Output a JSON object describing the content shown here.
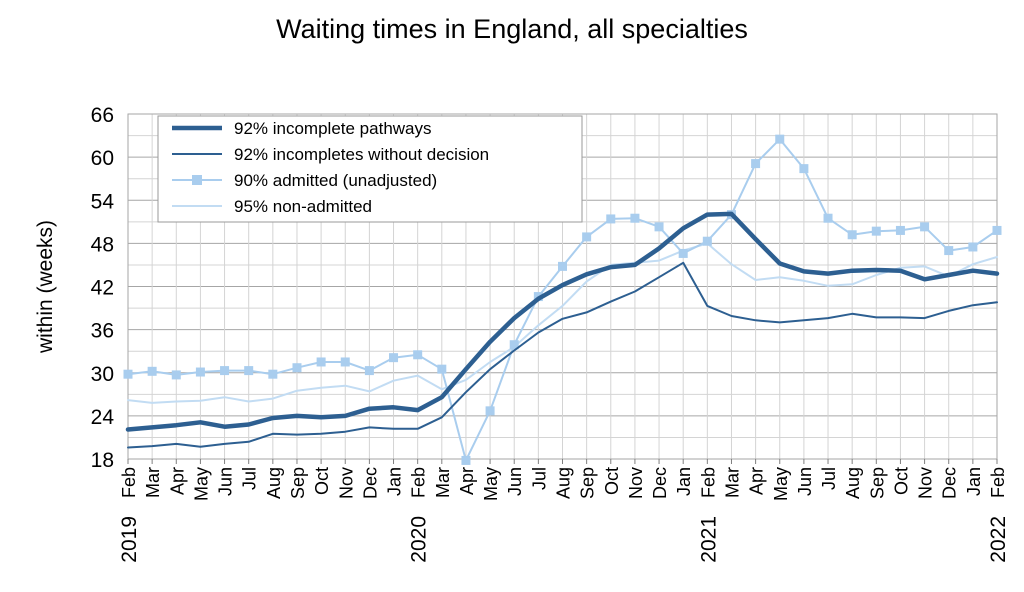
{
  "chart_data": {
    "type": "line",
    "title": "Waiting times in England, all specialties",
    "ylabel": "within  (weeks)",
    "xlabel": "",
    "ylim": [
      18,
      66
    ],
    "yticks": [
      18,
      24,
      30,
      36,
      42,
      48,
      54,
      60,
      66
    ],
    "grid": true,
    "legend_position": "top-left",
    "x": [
      "Feb",
      "Mar",
      "Apr",
      "May",
      "Jun",
      "Jul",
      "Aug",
      "Sep",
      "Oct",
      "Nov",
      "Dec",
      "Jan",
      "Feb",
      "Mar",
      "Apr",
      "May",
      "Jun",
      "Jul",
      "Aug",
      "Sep",
      "Oct",
      "Nov",
      "Dec",
      "Jan",
      "Feb",
      "Mar",
      "Apr",
      "May",
      "Jun",
      "Jul",
      "Aug",
      "Sep",
      "Oct",
      "Nov",
      "Dec",
      "Jan",
      "Feb"
    ],
    "year_labels": [
      {
        "index": 0,
        "label": "2019"
      },
      {
        "index": 12,
        "label": "2020"
      },
      {
        "index": 24,
        "label": "2021"
      },
      {
        "index": 36,
        "label": "2022"
      }
    ],
    "series": [
      {
        "name": "92% incomplete pathways",
        "color": "#2d5f91",
        "style": "thick",
        "values": [
          22.1,
          22.4,
          22.7,
          23.1,
          22.5,
          22.8,
          23.7,
          24.0,
          23.8,
          24.0,
          25.0,
          25.2,
          24.8,
          26.6,
          30.5,
          34.3,
          37.6,
          40.3,
          42.2,
          43.7,
          44.7,
          45.0,
          47.3,
          50.1,
          52.0,
          52.1,
          48.6,
          45.2,
          44.1,
          43.8,
          44.2,
          44.3,
          44.2,
          43.0,
          43.6,
          44.2,
          43.8
        ]
      },
      {
        "name": "92% incompletes without decision",
        "color": "#2d5f91",
        "style": "thin",
        "values": [
          19.6,
          19.8,
          20.1,
          19.7,
          20.1,
          20.4,
          21.5,
          21.4,
          21.5,
          21.8,
          22.4,
          22.2,
          22.2,
          23.8,
          27.3,
          30.5,
          33.1,
          35.6,
          37.5,
          38.4,
          39.9,
          41.3,
          43.3,
          45.3,
          39.3,
          37.9,
          37.3,
          37.0,
          37.3,
          37.6,
          38.2,
          37.7,
          37.7,
          37.6,
          38.6,
          39.4,
          39.8
        ]
      },
      {
        "name": "90% admitted (unadjusted)",
        "color": "#a9cdee",
        "style": "markers",
        "values": [
          29.8,
          30.2,
          29.7,
          30.1,
          30.3,
          30.3,
          29.8,
          30.7,
          31.5,
          31.5,
          30.3,
          32.1,
          32.5,
          30.5,
          17.8,
          24.7,
          33.9,
          40.6,
          44.8,
          48.9,
          51.4,
          51.5,
          50.3,
          46.6,
          48.3,
          52.0,
          59.1,
          62.5,
          58.4,
          51.5,
          49.2,
          49.7,
          49.8,
          50.3,
          47.0,
          47.5,
          49.8
        ]
      },
      {
        "name": "95% non-admitted",
        "color": "#c2dcf3",
        "style": "thin",
        "values": [
          26.2,
          25.8,
          26.0,
          26.1,
          26.6,
          26.0,
          26.4,
          27.5,
          27.9,
          28.2,
          27.4,
          28.9,
          29.6,
          27.7,
          29.0,
          31.5,
          33.6,
          36.6,
          39.3,
          42.7,
          45.0,
          45.3,
          45.6,
          47.0,
          48.0,
          45.1,
          42.9,
          43.3,
          42.8,
          42.1,
          42.3,
          43.6,
          44.6,
          44.8,
          43.4,
          45.1,
          46.1
        ]
      }
    ]
  }
}
